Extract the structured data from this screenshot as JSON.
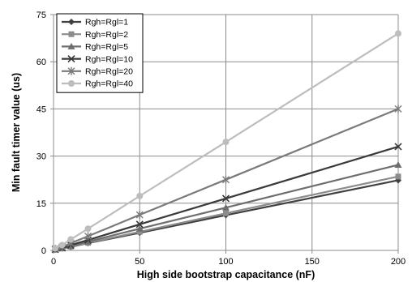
{
  "chart_data": {
    "type": "line",
    "title": "",
    "xlabel": "High side bootstrap capacitance (nF)",
    "ylabel": "Min fault timer value (us)",
    "x": [
      1,
      5,
      10,
      20,
      50,
      100,
      200
    ],
    "xlim": [
      0,
      200
    ],
    "ylim": [
      0,
      75
    ],
    "xticks": [
      0,
      50,
      100,
      150,
      200
    ],
    "yticks": [
      0,
      15,
      30,
      45,
      60,
      75
    ],
    "grid": true,
    "legend_position": "top-left",
    "series": [
      {
        "name": "Rgh=Rgl=1",
        "marker": "diamond",
        "color": "#404040",
        "values": [
          0.2,
          0.6,
          1.1,
          2.3,
          5.6,
          11.2,
          22.3
        ]
      },
      {
        "name": "Rgh=Rgl=2",
        "marker": "square",
        "color": "#8c8c8c",
        "values": [
          0.2,
          0.6,
          1.2,
          2.4,
          5.9,
          11.8,
          23.5
        ]
      },
      {
        "name": "Rgh=Rgl=5",
        "marker": "triangle",
        "color": "#6e6e6e",
        "values": [
          0.3,
          0.7,
          1.4,
          2.8,
          6.9,
          13.6,
          27.2
        ]
      },
      {
        "name": "Rgh=Rgl=10",
        "marker": "x",
        "color": "#3a3a3a",
        "values": [
          0.3,
          0.8,
          1.7,
          3.3,
          8.3,
          16.5,
          33.0
        ]
      },
      {
        "name": "Rgh=Rgl=20",
        "marker": "star",
        "color": "#7a7a7a",
        "values": [
          0.5,
          1.1,
          2.3,
          4.5,
          11.3,
          22.5,
          45.0
        ]
      },
      {
        "name": "Rgh=Rgl=40",
        "marker": "circle",
        "color": "#bdbdbd",
        "values": [
          0.7,
          1.7,
          3.5,
          6.9,
          17.3,
          34.5,
          69.0
        ]
      }
    ]
  }
}
